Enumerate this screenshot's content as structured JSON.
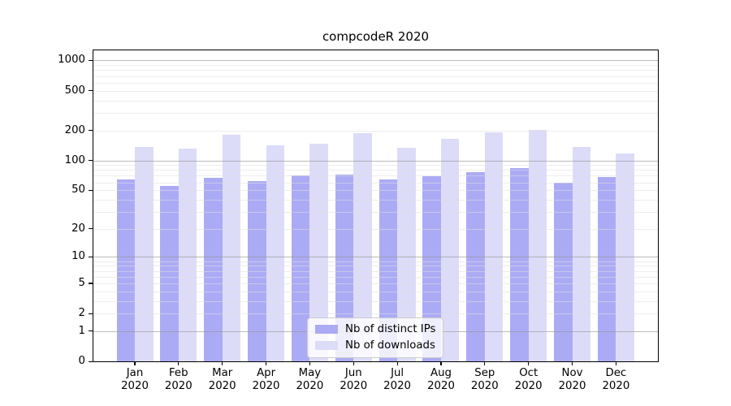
{
  "title": "compcodeR 2020",
  "chart_data": {
    "type": "bar",
    "title": "compcodeR 2020",
    "categories": [
      "Jan 2020",
      "Feb 2020",
      "Mar 2020",
      "Apr 2020",
      "May 2020",
      "Jun 2020",
      "Jul 2020",
      "Aug 2020",
      "Sep 2020",
      "Oct 2020",
      "Nov 2020",
      "Dec 2020"
    ],
    "series": [
      {
        "name": "Nb of distinct IPs",
        "color": "#ababf5",
        "values": [
          64,
          55,
          67,
          62,
          71,
          72,
          64,
          69,
          76,
          84,
          60,
          68
        ]
      },
      {
        "name": "Nb of downloads",
        "color": "#dcdcf9",
        "values": [
          137,
          132,
          181,
          141,
          146,
          188,
          135,
          165,
          190,
          202,
          137,
          117
        ]
      }
    ],
    "yscale": "log1p",
    "y_ticks": [
      0,
      1,
      2,
      5,
      10,
      20,
      50,
      100,
      200,
      500,
      1000
    ],
    "ylim": [
      0,
      1260
    ],
    "xlabel": "",
    "ylabel": "",
    "grid": true,
    "legend_position": "lower center"
  },
  "colors": {
    "bar_distinct_ips": "#ababf5",
    "bar_downloads": "#dcdcf9",
    "grid_major": "#969696",
    "grid_minor": "#dedede",
    "axis": "#000000",
    "background": "#ffffff",
    "legend_border": "#cccccc"
  }
}
